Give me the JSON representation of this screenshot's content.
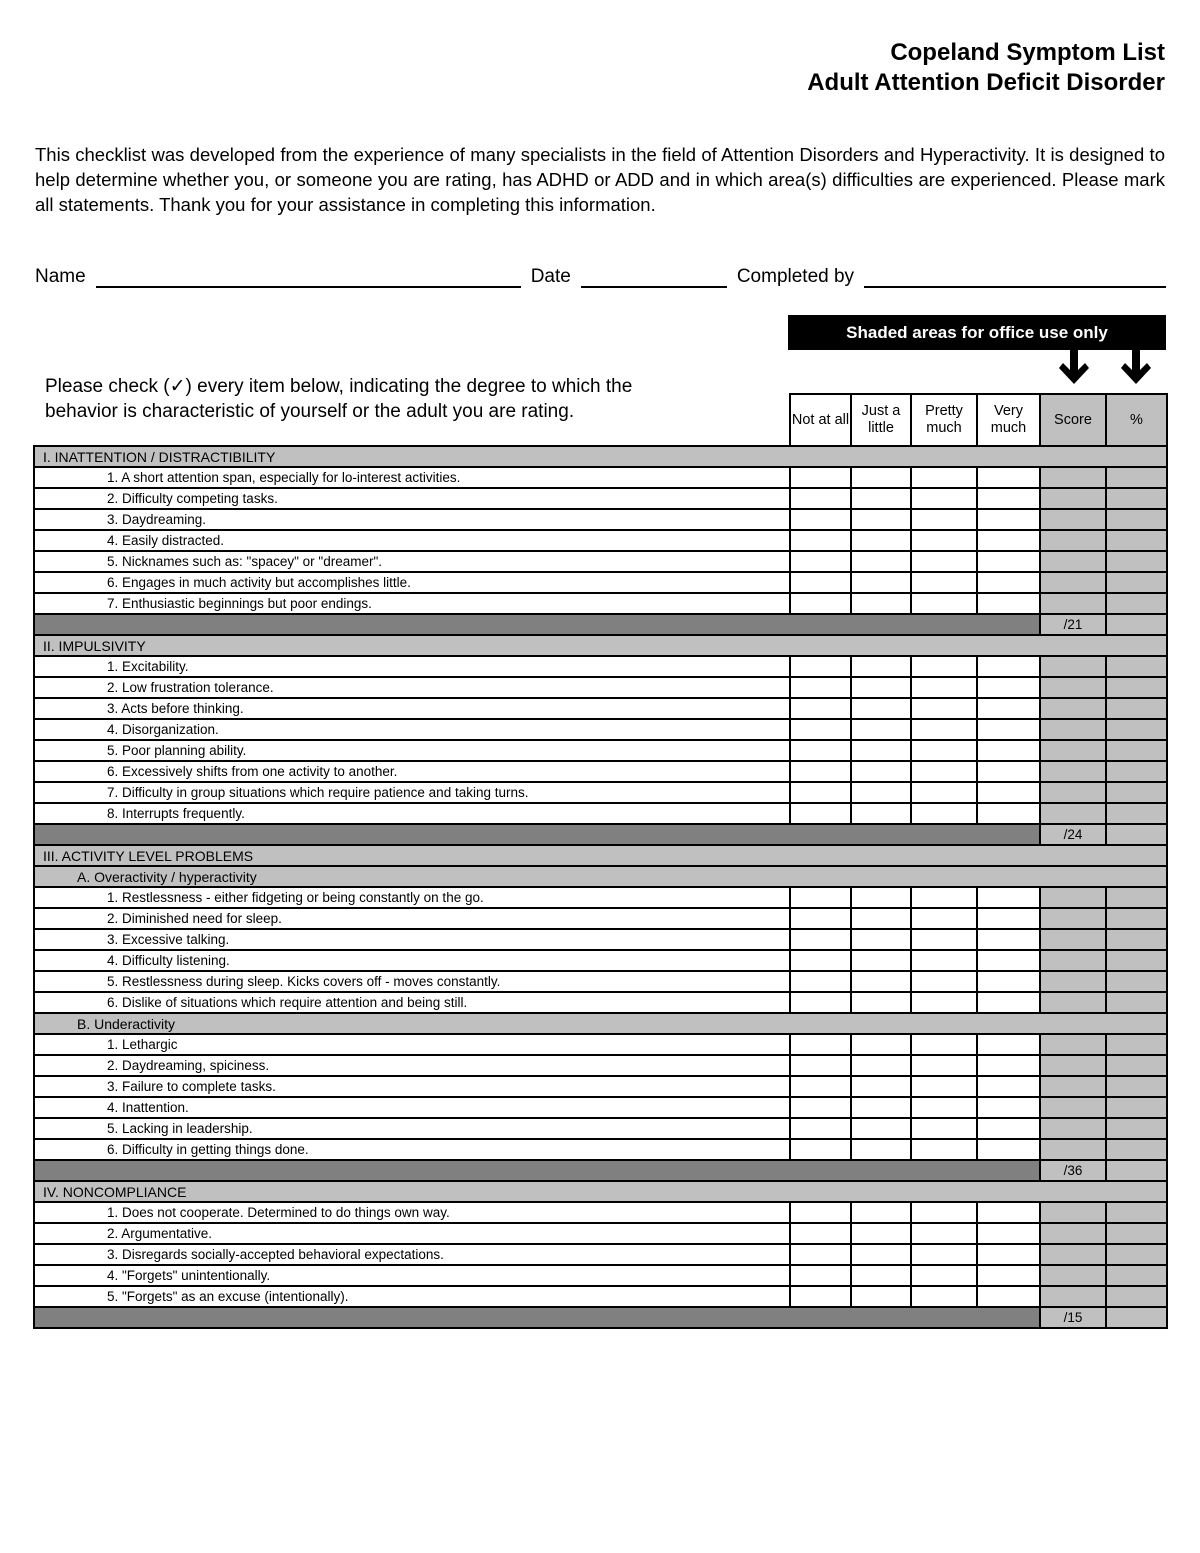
{
  "title": {
    "line1": "Copeland Symptom List",
    "line2": "Adult Attention Deficit Disorder"
  },
  "intro": "This checklist was developed from the experience of many specialists in the field of Attention Disorders and Hyperactivity.  It is designed to help determine whether you, or someone you are rating, has ADHD or ADD and in which area(s) difficulties are experienced.  Please mark all statements.  Thank you for your assistance in completing this information.",
  "fields": {
    "name": "Name",
    "date": "Date",
    "completed_by": "Completed by"
  },
  "banner": "Shaded areas for office use only",
  "instructions": {
    "line1": "Please check (✓) every item below, indicating the degree to which the",
    "line2": "behavior is characteristic of yourself or the adult you are rating."
  },
  "columns": [
    "Not at all",
    "Just a little",
    "Pretty much",
    "Very much",
    "Score",
    "%"
  ],
  "colors": {
    "shaded": "#c0c0c0",
    "total_bar": "#808080"
  },
  "sections": [
    {
      "title": "I.  INATTENTION / DISTRACTIBILITY",
      "groups": [
        {
          "title": null,
          "items": [
            "1.  A short attention span, especially for lo-interest activities.",
            "2.  Difficulty competing tasks.",
            "3.  Daydreaming.",
            "4.  Easily distracted.",
            "5.  Nicknames such as:  \"spacey\" or \"dreamer\".",
            "6.  Engages in much activity but accomplishes little.",
            "7.  Enthusiastic beginnings but poor endings."
          ]
        }
      ],
      "total": "/21"
    },
    {
      "title": "II.  IMPULSIVITY",
      "groups": [
        {
          "title": null,
          "items": [
            "1.  Excitability.",
            "2.  Low frustration tolerance.",
            "3.  Acts before thinking.",
            "4.  Disorganization.",
            "5.  Poor planning ability.",
            "6.  Excessively shifts from one activity to another.",
            "7.  Difficulty in group situations which require patience and taking turns.",
            "8.  Interrupts frequently."
          ]
        }
      ],
      "total": "/24"
    },
    {
      "title": "III.  ACTIVITY LEVEL PROBLEMS",
      "groups": [
        {
          "title": "A.  Overactivity / hyperactivity",
          "items": [
            "1.  Restlessness - either fidgeting or being constantly on the go.",
            "2.  Diminished need for sleep.",
            "3.  Excessive talking.",
            "4.  Difficulty listening.",
            "5.  Restlessness during sleep.  Kicks covers off - moves constantly.",
            "6.  Dislike of situations which require attention and being still."
          ]
        },
        {
          "title": "B. Underactivity",
          "items": [
            "1.  Lethargic",
            "2.  Daydreaming, spiciness.",
            "3. Failure to complete tasks.",
            "4.  Inattention.",
            "5.  Lacking in leadership.",
            "6.  Difficulty in getting things done."
          ]
        }
      ],
      "total": "/36"
    },
    {
      "title": "IV.  NONCOMPLIANCE",
      "groups": [
        {
          "title": null,
          "items": [
            "1.  Does not cooperate.  Determined to do things own way.",
            "2.  Argumentative.",
            "3.  Disregards socially-accepted behavioral expectations.",
            "4.  \"Forgets\" unintentionally.",
            "5.  \"Forgets\" as an excuse (intentionally)."
          ]
        }
      ],
      "total": "/15"
    }
  ]
}
